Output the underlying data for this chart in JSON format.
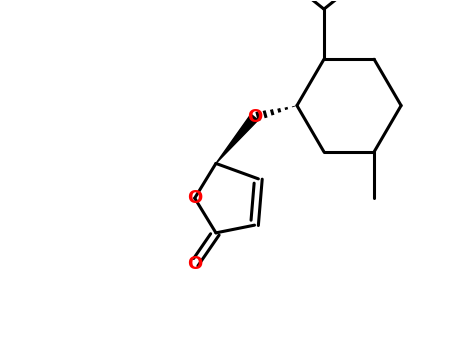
{
  "bg_color": "#ffffff",
  "line_color": "#000000",
  "O_color": "#ff0000",
  "lw": 2.2,
  "lw_thick": 3.0,
  "figsize": [
    4.55,
    3.5
  ],
  "dpi": 100,
  "xlim": [
    -5,
    5
  ],
  "ylim": [
    -4.5,
    4.5
  ]
}
